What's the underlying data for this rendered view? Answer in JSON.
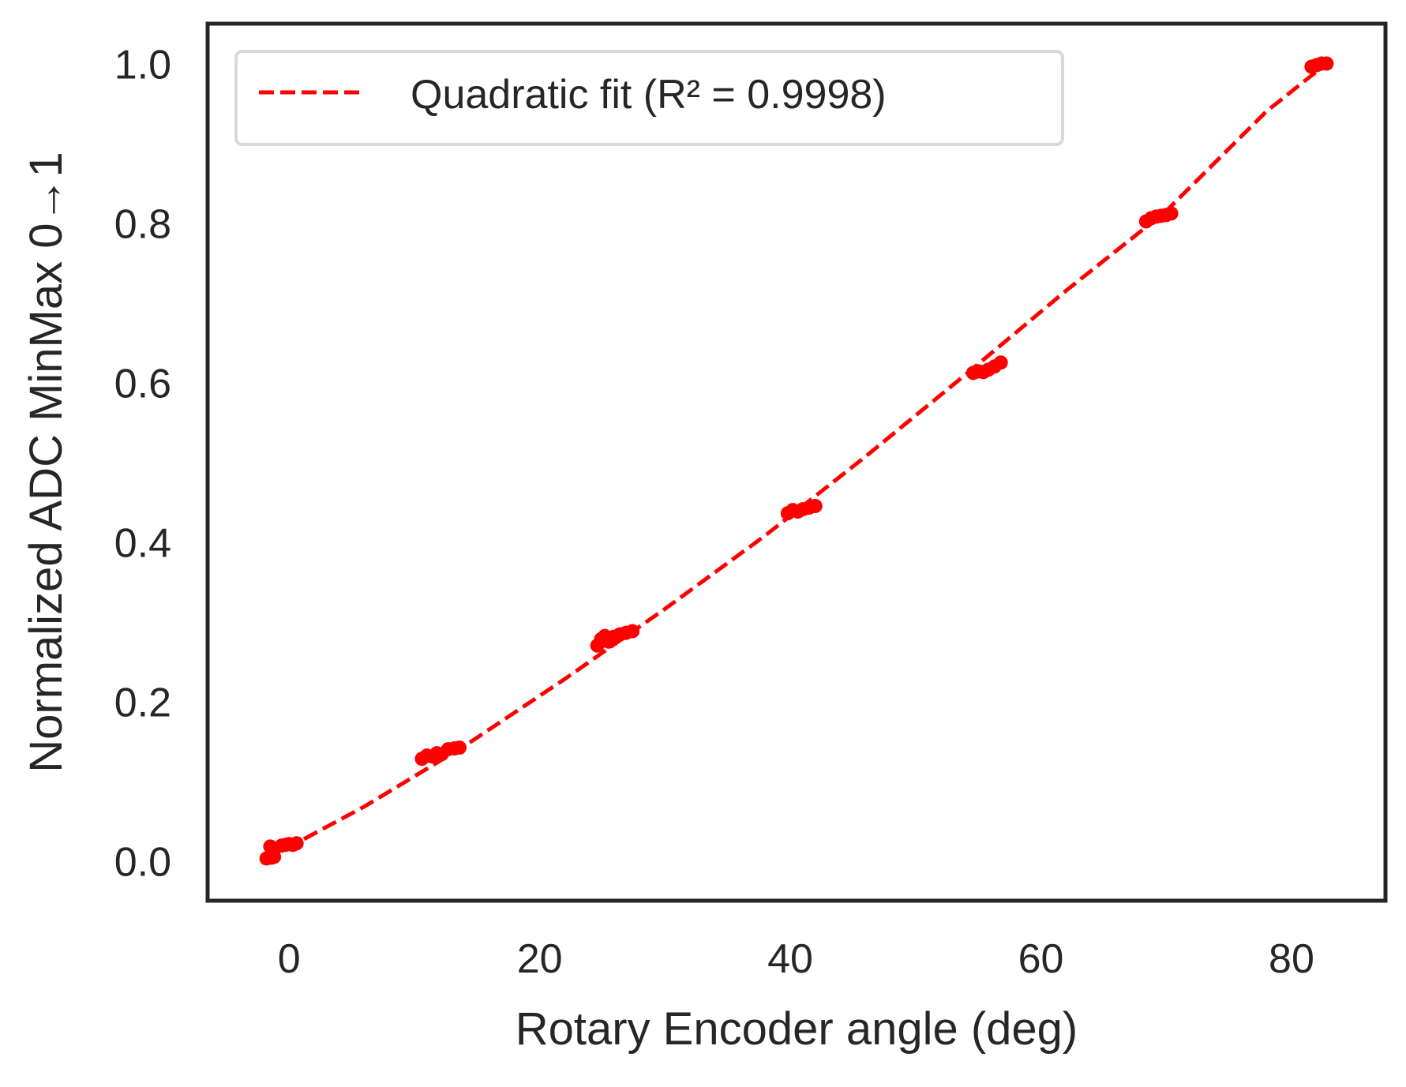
{
  "chart_data": {
    "type": "scatter",
    "title": "",
    "xlabel": "Rotary Encoder angle (deg)",
    "ylabel": "Normalized ADC MinMax 0→1",
    "xlim": [
      -6.5,
      87.5
    ],
    "ylim": [
      -0.05,
      1.05
    ],
    "x_ticks": [
      0,
      20,
      40,
      60,
      80
    ],
    "x_tick_labels": [
      "0",
      "20",
      "40",
      "60",
      "80"
    ],
    "y_ticks": [
      0.0,
      0.2,
      0.4,
      0.6,
      0.8,
      1.0
    ],
    "y_tick_labels": [
      "0.0",
      "0.2",
      "0.4",
      "0.6",
      "0.8",
      "1.0"
    ],
    "grid": false,
    "legend_position": "top-left",
    "colors": {
      "series": "#ff0000",
      "axes": "#262626",
      "text": "#262626",
      "legend_border": "#d9d9d9"
    },
    "series": [
      {
        "role": "measurements",
        "style": "points",
        "x": [
          -1.8,
          -1.6,
          -1.4,
          -1.2,
          -1.5,
          -0.6,
          -0.3,
          0.0,
          0.3,
          0.6,
          10.6,
          11.0,
          11.4,
          11.8,
          12.2,
          12.7,
          13.2,
          13.6,
          24.6,
          24.9,
          25.2,
          25.5,
          25.9,
          26.4,
          26.9,
          27.4,
          39.8,
          40.2,
          40.6,
          41.0,
          41.5,
          42.0,
          54.6,
          55.0,
          55.4,
          55.8,
          56.3,
          56.8,
          68.4,
          68.8,
          69.2,
          69.6,
          70.0,
          70.4,
          81.6,
          82.0,
          82.4,
          82.8
        ],
        "y": [
          0.003,
          0.004,
          0.004,
          0.005,
          0.018,
          0.019,
          0.02,
          0.021,
          0.02,
          0.022,
          0.128,
          0.132,
          0.131,
          0.135,
          0.134,
          0.14,
          0.141,
          0.142,
          0.27,
          0.278,
          0.282,
          0.275,
          0.281,
          0.284,
          0.286,
          0.288,
          0.436,
          0.44,
          0.438,
          0.441,
          0.443,
          0.445,
          0.612,
          0.614,
          0.613,
          0.616,
          0.62,
          0.625,
          0.802,
          0.806,
          0.808,
          0.809,
          0.81,
          0.812,
          0.996,
          0.998,
          1.0,
          1.0
        ]
      },
      {
        "name": "Quadratic fit (R² = 0.9998)",
        "role": "fit",
        "style": "dashed-line",
        "x": [
          -1.8,
          6.0,
          14.0,
          22.0,
          30.0,
          38.0,
          46.0,
          54.0,
          62.0,
          70.0,
          78.0,
          82.8
        ],
        "y": [
          0.002,
          0.068,
          0.144,
          0.228,
          0.316,
          0.408,
          0.507,
          0.61,
          0.715,
          0.815,
          0.94,
          1.0
        ]
      }
    ]
  }
}
